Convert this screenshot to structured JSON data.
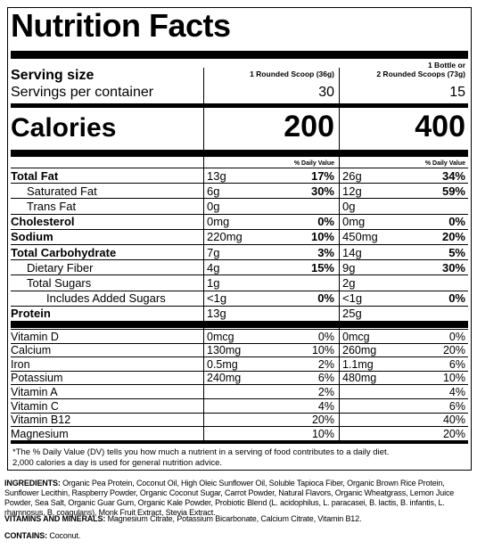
{
  "title": "Nutrition Facts",
  "serving_size_label": "Serving size",
  "servings_label": "Servings per container",
  "calories_label": "Calories",
  "columns": [
    {
      "serving_lines": [
        "1 Rounded Scoop (36g)"
      ],
      "servings": 30,
      "calories": 200
    },
    {
      "serving_lines": [
        "1 Bottle or",
        "2 Rounded Scoops (73g)"
      ],
      "servings": 15,
      "calories": 400
    }
  ],
  "dv_header": "% Daily Value",
  "nutrients": [
    {
      "name": "Total Fat",
      "amounts": [
        "13g",
        "26g"
      ],
      "dv": [
        "17%",
        "34%"
      ]
    },
    {
      "name": "Saturated Fat",
      "amounts": [
        "6g",
        "12g"
      ],
      "dv": [
        "30%",
        "59%"
      ]
    },
    {
      "name": "Trans Fat",
      "amounts": [
        "0g",
        "0g"
      ],
      "dv": [
        null,
        null
      ]
    },
    {
      "name": "Cholesterol",
      "amounts": [
        "0mg",
        "0mg"
      ],
      "dv": [
        "0%",
        "0%"
      ]
    },
    {
      "name": "Sodium",
      "amounts": [
        "220mg",
        "450mg"
      ],
      "dv": [
        "10%",
        "20%"
      ]
    },
    {
      "name": "Total Carbohydrate",
      "amounts": [
        "7g",
        "14g"
      ],
      "dv": [
        "3%",
        "5%"
      ]
    },
    {
      "name": "Dietary Fiber",
      "amounts": [
        "4g",
        "9g"
      ],
      "dv": [
        "15%",
        "30%"
      ]
    },
    {
      "name": "Total Sugars",
      "amounts": [
        "1g",
        "2g"
      ],
      "dv": [
        null,
        null
      ]
    },
    {
      "name": "Includes Added Sugars",
      "amounts": [
        "<1g",
        "<1g"
      ],
      "dv": [
        "0%",
        "0%"
      ]
    },
    {
      "name": "Protein",
      "amounts": [
        "13g",
        "25g"
      ],
      "dv": [
        null,
        null
      ]
    }
  ],
  "vitamins": [
    {
      "name": "Vitamin D",
      "amounts": [
        "0mcg",
        "0mcg"
      ],
      "dv": [
        "0%",
        "0%"
      ]
    },
    {
      "name": "Calcium",
      "amounts": [
        "130mg",
        "260mg"
      ],
      "dv": [
        "10%",
        "20%"
      ]
    },
    {
      "name": "Iron",
      "amounts": [
        "0.5mg",
        "1.1mg"
      ],
      "dv": [
        "2%",
        "6%"
      ]
    },
    {
      "name": "Potassium",
      "amounts": [
        "240mg",
        "480mg"
      ],
      "dv": [
        "6%",
        "10%"
      ]
    },
    {
      "name": "Vitamin A",
      "amounts": [
        null,
        null
      ],
      "dv": [
        "2%",
        "4%"
      ]
    },
    {
      "name": "Vitamin C",
      "amounts": [
        null,
        null
      ],
      "dv": [
        "4%",
        "6%"
      ]
    },
    {
      "name": "Vitamin B12",
      "amounts": [
        null,
        null
      ],
      "dv": [
        "20%",
        "40%"
      ]
    },
    {
      "name": "Magnesium",
      "amounts": [
        null,
        null
      ],
      "dv": [
        "10%",
        "20%"
      ]
    }
  ],
  "footnote": [
    "*The % Daily Value (DV) tells you how much a nutrient in a serving of food contributes to a daily diet.",
    "2,000 calories a day is used for general nutrition advice."
  ],
  "ingredients": {
    "label": "INGREDIENTS:",
    "text": "Organic Pea Protein, Coconut Oil, High Oleic Sunflower Oil, Soluble Tapioca Fiber, Organic Brown Rice Protein, Sunflower Lecithin, Raspberry Powder, Organic Coconut Sugar, Carrot Powder, Natural Flavors, Organic Wheatgrass, Lemon Juice Powder, Sea Salt, Organic Guar Gum, Organic Kale Powder, Probiotic Blend (L. acidophilus, L. paracasei, B. lactis, B. infantis, L. rhamnosus, B. coagulans), Monk Fruit Extract, Stevia Extract."
  },
  "vitamins_minerals": {
    "label": "VITAMINS AND MINERALS:",
    "text": "Magnesium Citrate, Potassium Bicarbonate, Calcium Citrate, Vitamin B12."
  },
  "contains": {
    "label": "CONTAINS:",
    "text": "Coconut."
  }
}
